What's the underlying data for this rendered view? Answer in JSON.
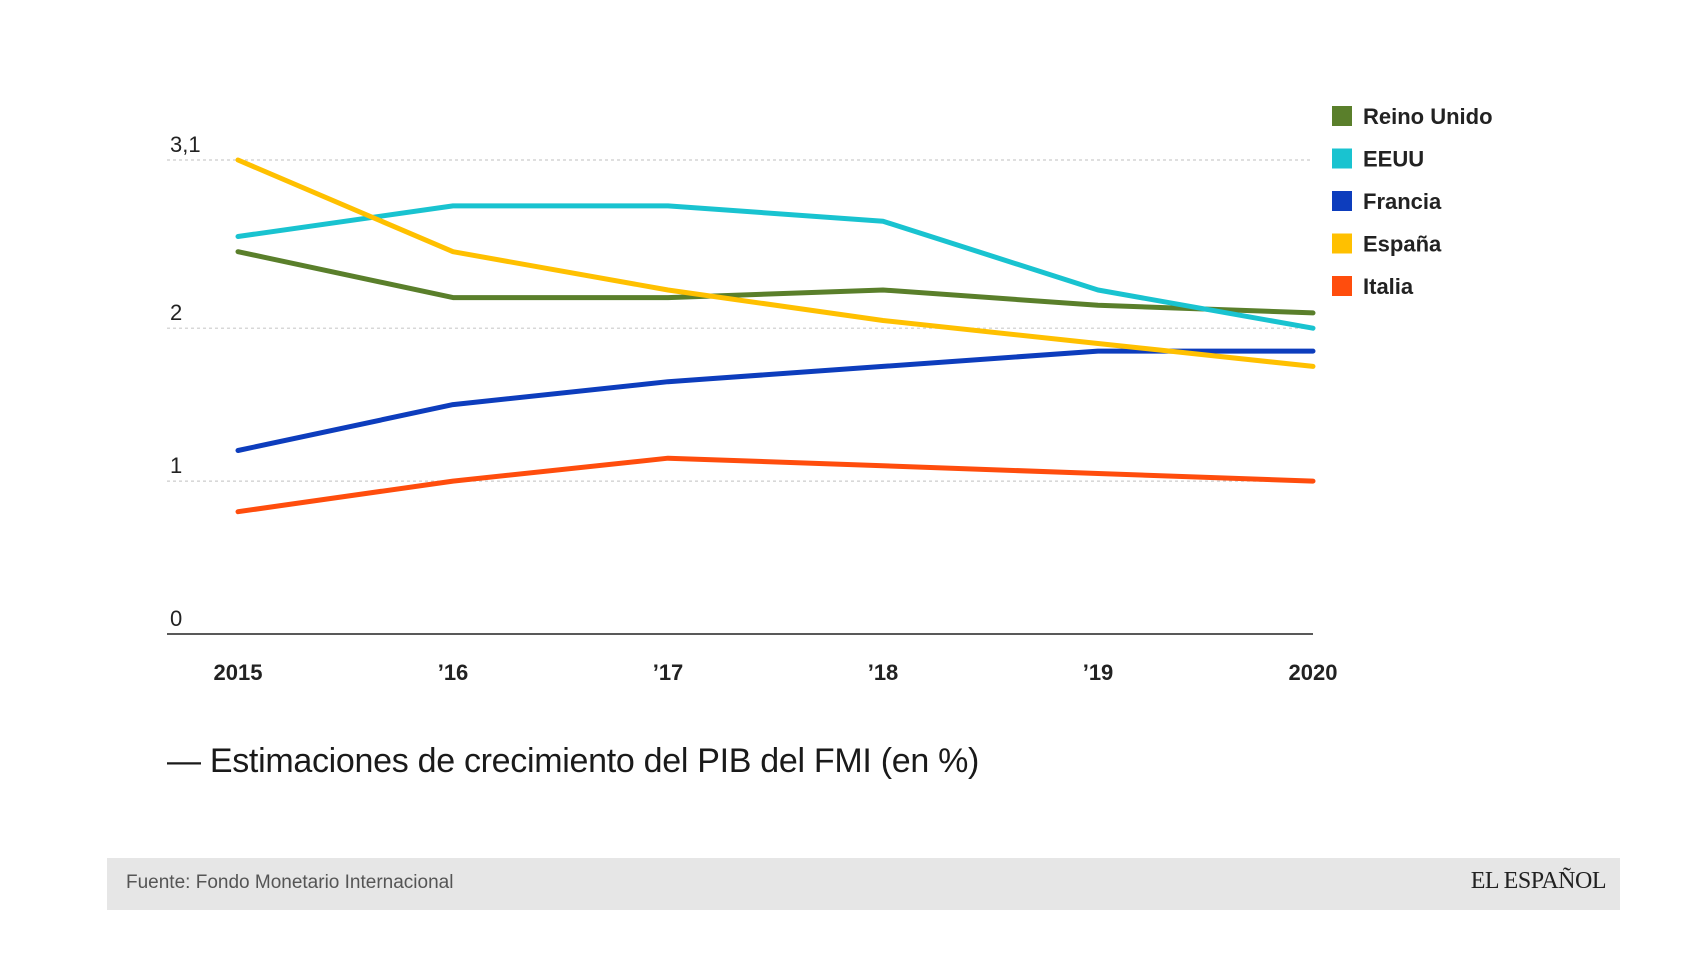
{
  "chart_data": {
    "type": "line",
    "title": "— Estimaciones de crecimiento del PIB del FMI (en %)",
    "categories": [
      "2015",
      "’16",
      "’17",
      "’18",
      "’19",
      "2020"
    ],
    "y_ticks": [
      {
        "value": 0,
        "label": "0"
      },
      {
        "value": 1,
        "label": "1"
      },
      {
        "value": 2,
        "label": "2"
      },
      {
        "value": 3.1,
        "label": "3,1"
      }
    ],
    "ylim": [
      0,
      3.1
    ],
    "grid": true,
    "legend_position": "top-right",
    "series": [
      {
        "name": "Reino Unido",
        "color": "#5a7f2b",
        "values": [
          2.5,
          2.2,
          2.2,
          2.25,
          2.15,
          2.1
        ]
      },
      {
        "name": "EEUU",
        "color": "#19c3d0",
        "values": [
          2.6,
          2.8,
          2.8,
          2.7,
          2.25,
          2.0
        ]
      },
      {
        "name": "Francia",
        "color": "#0d3dbd",
        "values": [
          1.2,
          1.5,
          1.65,
          1.75,
          1.85,
          1.85
        ]
      },
      {
        "name": "España",
        "color": "#ffc000",
        "values": [
          3.1,
          2.5,
          2.25,
          2.05,
          1.9,
          1.75
        ]
      },
      {
        "name": "Italia",
        "color": "#ff4d0d",
        "values": [
          0.8,
          1.0,
          1.15,
          1.1,
          1.05,
          1.0
        ]
      }
    ]
  },
  "footer": {
    "source": "Fuente: Fondo Monetario Internacional",
    "brand": "EL ESPAÑOL"
  }
}
